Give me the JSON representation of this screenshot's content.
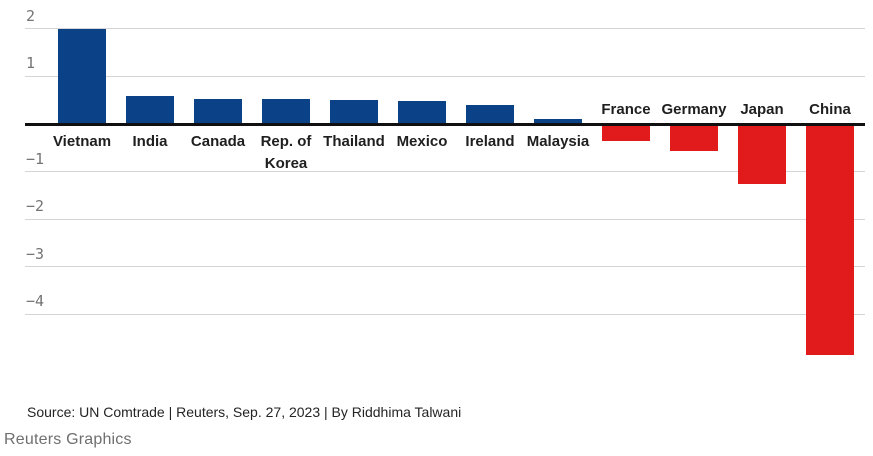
{
  "chart_data": {
    "type": "bar",
    "title": "",
    "xlabel": "",
    "ylabel": "",
    "categories": [
      "Vietnam",
      "India",
      "Canada",
      "Rep. of Korea",
      "Thailand",
      "Mexico",
      "Ireland",
      "Malaysia",
      "France",
      "Germany",
      "Japan",
      "China"
    ],
    "values": [
      2.0,
      0.59,
      0.53,
      0.53,
      0.51,
      0.48,
      0.4,
      0.1,
      -0.35,
      -0.56,
      -1.25,
      -4.85
    ],
    "ylim": [
      -4.9,
      2.1
    ],
    "yticks": [
      {
        "value": 2,
        "label": "2"
      },
      {
        "value": 1,
        "label": "1"
      },
      {
        "value": -1,
        "label": "−1"
      },
      {
        "value": -2,
        "label": "−2"
      },
      {
        "value": -3,
        "label": "−3"
      },
      {
        "value": -4,
        "label": "−4"
      }
    ],
    "grid": true,
    "zero_line": true,
    "legend": "none",
    "positive_color": "#0b4287",
    "negative_color": "#e11b1c",
    "gridline_color": "#d4d4d4",
    "zero_line_color": "#101010",
    "tick_label_color": "#747474",
    "category_label_color": "#1f1f1f"
  },
  "footer": {
    "source": "Source: UN Comtrade | Reuters, Sep. 27, 2023 | By Riddhima Talwani",
    "credit": "Reuters Graphics"
  }
}
